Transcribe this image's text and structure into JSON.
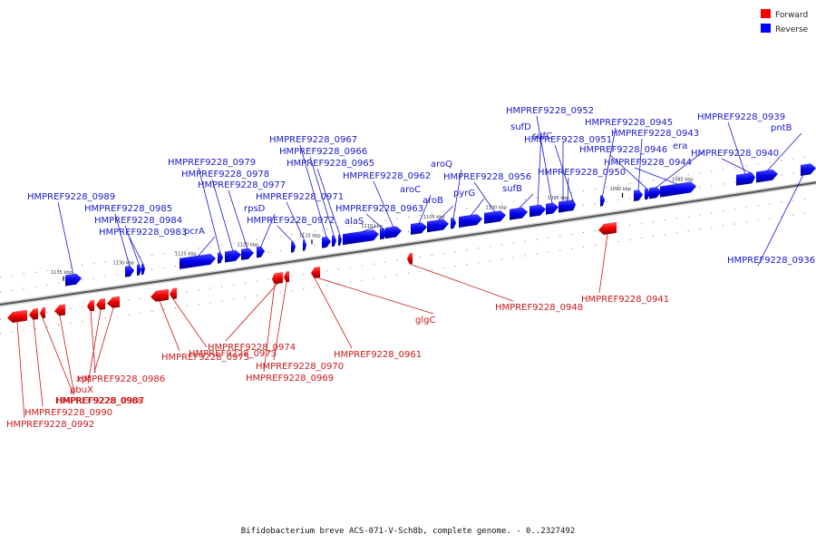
{
  "legend": {
    "forward_label": "Forward",
    "reverse_label": "Reverse",
    "forward_color": "#ff0000",
    "reverse_color": "#0000ff"
  },
  "caption": "Bifidobacterium breve ACS-071-V-Sch8b, complete genome. - 0..2327492",
  "ticks": [
    {
      "label": "1135 kbp",
      "pos": 1135
    },
    {
      "label": "1130 kbp",
      "pos": 1130
    },
    {
      "label": "1125 kbp",
      "pos": 1125
    },
    {
      "label": "1120 kbp",
      "pos": 1120
    },
    {
      "label": "1115 kbp",
      "pos": 1115
    },
    {
      "label": "1110 kbp",
      "pos": 1110
    },
    {
      "label": "1105 kbp",
      "pos": 1105
    },
    {
      "label": "1100 kbp",
      "pos": 1100
    },
    {
      "label": "1095 kbp",
      "pos": 1095
    },
    {
      "label": "1090 kbp",
      "pos": 1090
    },
    {
      "label": "1085 kbp",
      "pos": 1085
    }
  ],
  "reverse_genes": [
    {
      "name": "HMPREF9228_0989"
    },
    {
      "name": "HMPREF9228_0985"
    },
    {
      "name": "HMPREF9228_0984"
    },
    {
      "name": "HMPREF9228_0983"
    },
    {
      "name": "pcrA"
    },
    {
      "name": "HMPREF9228_0979"
    },
    {
      "name": "HMPREF9228_0978"
    },
    {
      "name": "HMPREF9228_0977"
    },
    {
      "name": "rpsD"
    },
    {
      "name": "HMPREF9228_0972"
    },
    {
      "name": "HMPREF9228_0971"
    },
    {
      "name": "HMPREF9228_0967"
    },
    {
      "name": "HMPREF9228_0966"
    },
    {
      "name": "HMPREF9228_0965"
    },
    {
      "name": "alaS"
    },
    {
      "name": "HMPREF9228_0963"
    },
    {
      "name": "HMPREF9228_0962"
    },
    {
      "name": "aroC"
    },
    {
      "name": "aroB"
    },
    {
      "name": "aroQ"
    },
    {
      "name": "pyrG"
    },
    {
      "name": "HMPREF9228_0956"
    },
    {
      "name": "sufB"
    },
    {
      "name": "sufD"
    },
    {
      "name": "HMPREF9228_0952"
    },
    {
      "name": "sufC"
    },
    {
      "name": "HMPREF9228_0951"
    },
    {
      "name": "HMPREF9228_0950"
    },
    {
      "name": "HMPREF9228_0945"
    },
    {
      "name": "HMPREF9228_0943"
    },
    {
      "name": "HMPREF9228_0946"
    },
    {
      "name": "era"
    },
    {
      "name": "HMPREF9228_0944"
    },
    {
      "name": "HMPREF9228_0939"
    },
    {
      "name": "pntB"
    },
    {
      "name": "HMPREF9228_0940"
    },
    {
      "name": "HMPREF9228_0936"
    }
  ],
  "forward_genes": [
    {
      "name": "HMPREF9228_0992"
    },
    {
      "name": "HMPREF9228_0990"
    },
    {
      "name": "HMPREF9228_0988"
    },
    {
      "name": "HMPREF9228_0987"
    },
    {
      "name": "HMPREF9228_0986"
    },
    {
      "name": "pbuX"
    },
    {
      "name": "xpt"
    },
    {
      "name": "HMPREF9228_0975"
    },
    {
      "name": "HMPREF9228_0973"
    },
    {
      "name": "HMPREF9228_0974"
    },
    {
      "name": "HMPREF9228_0970"
    },
    {
      "name": "HMPREF9228_0969"
    },
    {
      "name": "HMPREF9228_0961"
    },
    {
      "name": "glgC"
    },
    {
      "name": "HMPREF9228_0948"
    },
    {
      "name": "HMPREF9228_0941"
    }
  ]
}
